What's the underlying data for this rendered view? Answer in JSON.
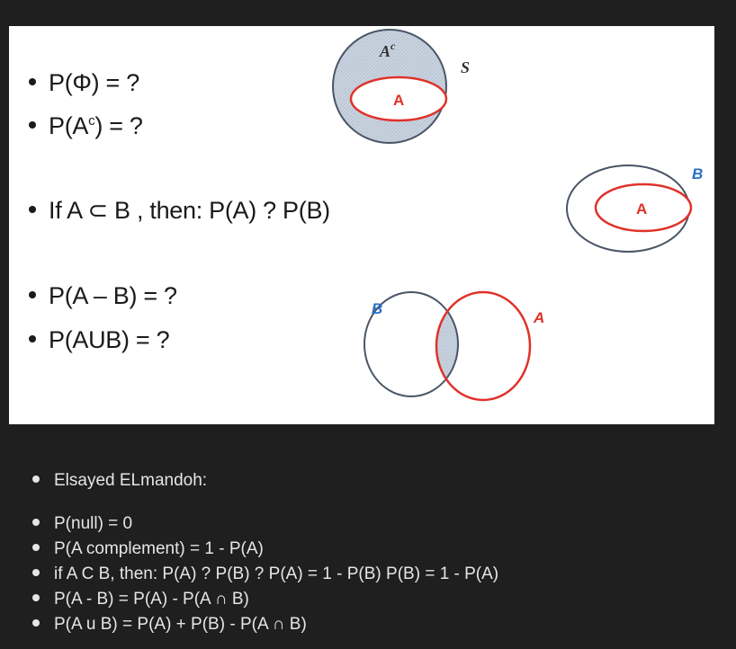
{
  "slide": {
    "items": [
      {
        "text": "P(Φ) = ?"
      },
      {
        "text_pre": "P(A",
        "sup": "c",
        "text_post": ") = ?"
      },
      {
        "text": "If A ⊂ B , then: P(A) ? P(B)"
      },
      {
        "text": "P(A – B) = ?"
      },
      {
        "text": "P(AUB) = ?"
      }
    ],
    "diagram_complement": {
      "outer_label": "Ac",
      "outer_label_base": "A",
      "outer_label_sup": "c",
      "set_label": "S",
      "inner_label": "A"
    },
    "diagram_subset": {
      "outer_label": "B",
      "inner_label": "A"
    },
    "diagram_difference": {
      "left_label": "B",
      "right_label": "A"
    },
    "colors": {
      "red": "#e0322a",
      "blue": "#2a6fc4",
      "shade": "#c9d3e0",
      "outline": "#4a5566"
    }
  },
  "notes": {
    "author": "Elsayed ELmandoh:",
    "lines": [
      "P(null) = 0",
      "P(A complement) = 1 - P(A)",
      "if A C B, then: P(A) ? P(B) ? P(A) = 1 - P(B) P(B) = 1 - P(A)",
      "P(A - B) = P(A) - P(A ∩ B)",
      "P(A u B) = P(A) + P(B) - P(A ∩ B)"
    ]
  }
}
